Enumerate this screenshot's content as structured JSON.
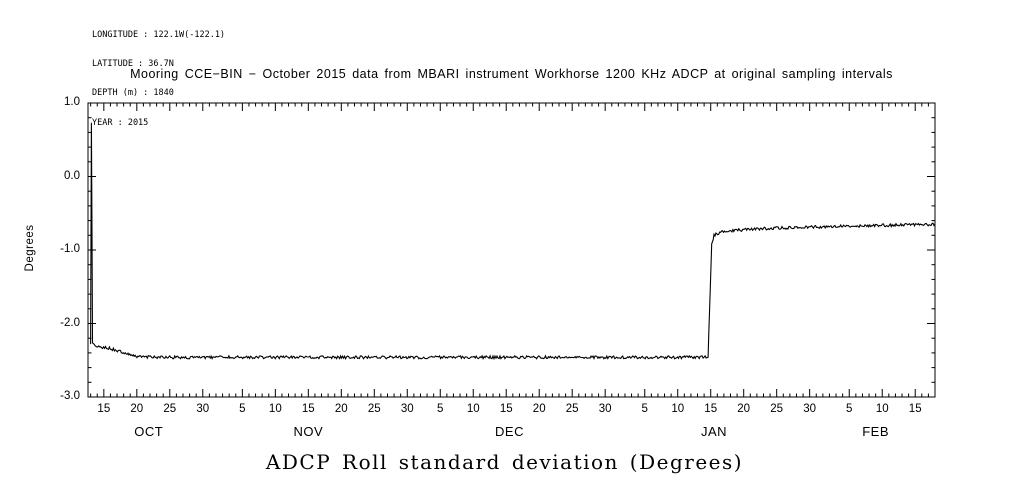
{
  "meta": {
    "longitude": "LONGITUDE : 122.1W(-122.1)",
    "latitude": "LATITUDE : 36.7N",
    "depth": "DEPTH (m) : 1840",
    "year": "YEAR : 2015"
  },
  "chart_data": {
    "type": "line",
    "title": "Mooring CCE−BIN − October 2015 data from MBARI instrument Workhorse 1200 KHz ADCP at original sampling intervals",
    "xlabel_caption": "ADCP Roll standard deviation (Degrees)",
    "ylabel": "Degrees",
    "xlabel": "",
    "ylim": [
      -3.0,
      1.0
    ],
    "y_minor_step": 0.2,
    "yticks": [
      {
        "value": 1.0,
        "label": "1.0"
      },
      {
        "value": 0.0,
        "label": "0.0"
      },
      {
        "value": -1.0,
        "label": "-1.0"
      },
      {
        "value": -2.0,
        "label": "-2.0"
      },
      {
        "value": -3.0,
        "label": "-3.0"
      }
    ],
    "x_encoding": "days since 2015-10-01 (Oct 1 = day 1); axis spans ~Oct 13 2015 to ~Feb 18 2016",
    "xlim_days": [
      12.6,
      141.0
    ],
    "xticks": [
      {
        "day": 15,
        "label": "15"
      },
      {
        "day": 20,
        "label": "20"
      },
      {
        "day": 25,
        "label": "25"
      },
      {
        "day": 30,
        "label": "30"
      },
      {
        "day": 36,
        "label": "5"
      },
      {
        "day": 41,
        "label": "10"
      },
      {
        "day": 46,
        "label": "15"
      },
      {
        "day": 51,
        "label": "20"
      },
      {
        "day": 56,
        "label": "25"
      },
      {
        "day": 61,
        "label": "30"
      },
      {
        "day": 66,
        "label": "5"
      },
      {
        "day": 71,
        "label": "10"
      },
      {
        "day": 76,
        "label": "15"
      },
      {
        "day": 81,
        "label": "20"
      },
      {
        "day": 86,
        "label": "25"
      },
      {
        "day": 91,
        "label": "30"
      },
      {
        "day": 97,
        "label": "5"
      },
      {
        "day": 102,
        "label": "10"
      },
      {
        "day": 107,
        "label": "15"
      },
      {
        "day": 112,
        "label": "20"
      },
      {
        "day": 117,
        "label": "25"
      },
      {
        "day": 122,
        "label": "30"
      },
      {
        "day": 128,
        "label": "5"
      },
      {
        "day": 133,
        "label": "10"
      },
      {
        "day": 138,
        "label": "15"
      }
    ],
    "months": [
      {
        "day": 21.8,
        "label": "OCT"
      },
      {
        "day": 46.0,
        "label": "NOV"
      },
      {
        "day": 76.5,
        "label": "DEC"
      },
      {
        "day": 107.5,
        "label": "JAN"
      },
      {
        "day": 132.0,
        "label": "FEB"
      }
    ],
    "grid": false,
    "legend": false,
    "axis_color": "#000000",
    "noise_amplitude": 0.02,
    "series": [
      {
        "name": "ADCP Roll standard deviation",
        "color": "#000000",
        "points": [
          [
            13.0,
            -2.28
          ],
          [
            13.12,
            0.73
          ],
          [
            13.28,
            -2.26
          ],
          [
            13.8,
            -2.3
          ],
          [
            14.8,
            -2.32
          ],
          [
            16.0,
            -2.34
          ],
          [
            17.2,
            -2.37
          ],
          [
            18.4,
            -2.41
          ],
          [
            19.6,
            -2.44
          ],
          [
            21.0,
            -2.455
          ],
          [
            25,
            -2.46
          ],
          [
            35,
            -2.46
          ],
          [
            50,
            -2.46
          ],
          [
            65,
            -2.46
          ],
          [
            80,
            -2.46
          ],
          [
            95,
            -2.46
          ],
          [
            103,
            -2.46
          ],
          [
            106.6,
            -2.46
          ],
          [
            106.9,
            -1.6
          ],
          [
            107.15,
            -0.92
          ],
          [
            107.5,
            -0.8
          ],
          [
            108.5,
            -0.76
          ],
          [
            110.5,
            -0.735
          ],
          [
            113.5,
            -0.715
          ],
          [
            117.5,
            -0.7
          ],
          [
            122,
            -0.688
          ],
          [
            127,
            -0.676
          ],
          [
            132,
            -0.667
          ],
          [
            137,
            -0.657
          ],
          [
            141.0,
            -0.65
          ]
        ]
      }
    ]
  }
}
